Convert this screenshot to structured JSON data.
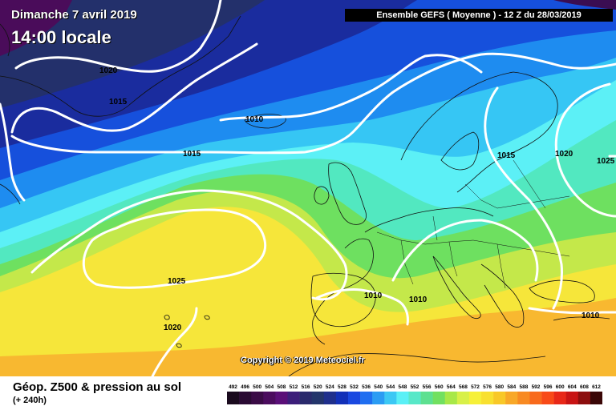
{
  "header": {
    "date": "Dimanche 7 avril 2019",
    "time": "14:00 locale",
    "run": "Ensemble GEFS  ( Moyenne )  -  12 Z du 28/03/2019"
  },
  "copyright": "Copyright © 2019 Meteociel.fr",
  "legend": {
    "title": "Géop. Z500 & pression au sol",
    "subtitle": "(+ 240h)",
    "values": [
      "492",
      "496",
      "500",
      "504",
      "508",
      "512",
      "516",
      "520",
      "524",
      "528",
      "532",
      "536",
      "540",
      "544",
      "548",
      "552",
      "556",
      "560",
      "564",
      "568",
      "572",
      "576",
      "580",
      "584",
      "588",
      "592",
      "596",
      "600",
      "604",
      "608",
      "612"
    ],
    "colors": [
      "#1a0a1e",
      "#2a0a33",
      "#3a0b46",
      "#4b0c5e",
      "#5a0f78",
      "#3c1e7a",
      "#2a2a6c",
      "#23356b",
      "#1f2f8c",
      "#1230b8",
      "#1a48e0",
      "#1f6ef0",
      "#2b9cf3",
      "#3cc8f4",
      "#5af0f6",
      "#58e8c8",
      "#5ee090",
      "#72e060",
      "#a8e848",
      "#d8f048",
      "#f6f038",
      "#f8e030",
      "#f8c828",
      "#f8a828",
      "#f88a22",
      "#f86a1c",
      "#f84a18",
      "#e82818",
      "#c81414",
      "#8c0e0e",
      "#3a0606"
    ]
  },
  "isobars": [
    "1020",
    "1015",
    "1010",
    "1015",
    "1015",
    "1020",
    "1025",
    "1025",
    "1020",
    "1010",
    "1010",
    "1010"
  ]
}
